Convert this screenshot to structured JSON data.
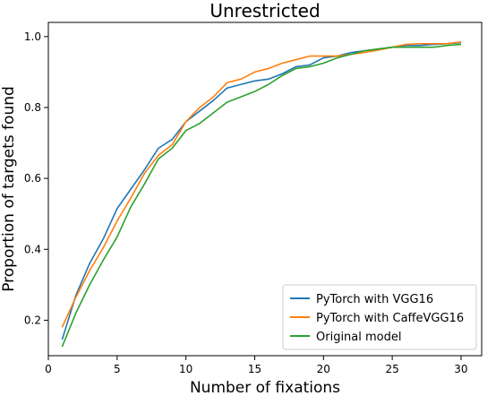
{
  "chart_data": {
    "type": "line",
    "title": "Unrestricted",
    "xlabel": "Number of fixations",
    "ylabel": "Proportion of targets found",
    "xlim": [
      0,
      31.5
    ],
    "ylim": [
      0.1,
      1.04
    ],
    "xticks": [
      0,
      5,
      10,
      15,
      20,
      25,
      30
    ],
    "yticks": [
      0.2,
      0.4,
      0.6,
      0.8,
      1.0
    ],
    "ytick_labels": [
      "0.2",
      "0.4",
      "0.6",
      "0.8",
      "1.0"
    ],
    "grid": false,
    "legend_position": "lower-right",
    "x": [
      1,
      2,
      3,
      4,
      5,
      6,
      7,
      8,
      9,
      10,
      11,
      12,
      13,
      14,
      15,
      16,
      17,
      18,
      19,
      20,
      21,
      22,
      23,
      24,
      25,
      26,
      27,
      28,
      29,
      30
    ],
    "series": [
      {
        "name": "PyTorch with VGG16",
        "color": "#1f77b4",
        "values": [
          0.145,
          0.27,
          0.36,
          0.43,
          0.515,
          0.57,
          0.625,
          0.685,
          0.71,
          0.76,
          0.79,
          0.82,
          0.855,
          0.865,
          0.875,
          0.88,
          0.895,
          0.915,
          0.92,
          0.94,
          0.945,
          0.955,
          0.96,
          0.965,
          0.97,
          0.975,
          0.975,
          0.978,
          0.98,
          0.983
        ]
      },
      {
        "name": "PyTorch with CaffeVGG16",
        "color": "#ff7f0e",
        "values": [
          0.18,
          0.265,
          0.34,
          0.405,
          0.48,
          0.545,
          0.615,
          0.665,
          0.695,
          0.76,
          0.8,
          0.83,
          0.87,
          0.88,
          0.9,
          0.91,
          0.925,
          0.935,
          0.945,
          0.945,
          0.945,
          0.95,
          0.955,
          0.962,
          0.97,
          0.978,
          0.98,
          0.98,
          0.98,
          0.985
        ]
      },
      {
        "name": "Original model",
        "color": "#2ca02c",
        "values": [
          0.125,
          0.22,
          0.3,
          0.37,
          0.435,
          0.52,
          0.585,
          0.655,
          0.685,
          0.735,
          0.755,
          0.785,
          0.815,
          0.83,
          0.845,
          0.865,
          0.89,
          0.91,
          0.915,
          0.925,
          0.94,
          0.95,
          0.96,
          0.965,
          0.97,
          0.97,
          0.97,
          0.97,
          0.975,
          0.978
        ]
      }
    ]
  }
}
